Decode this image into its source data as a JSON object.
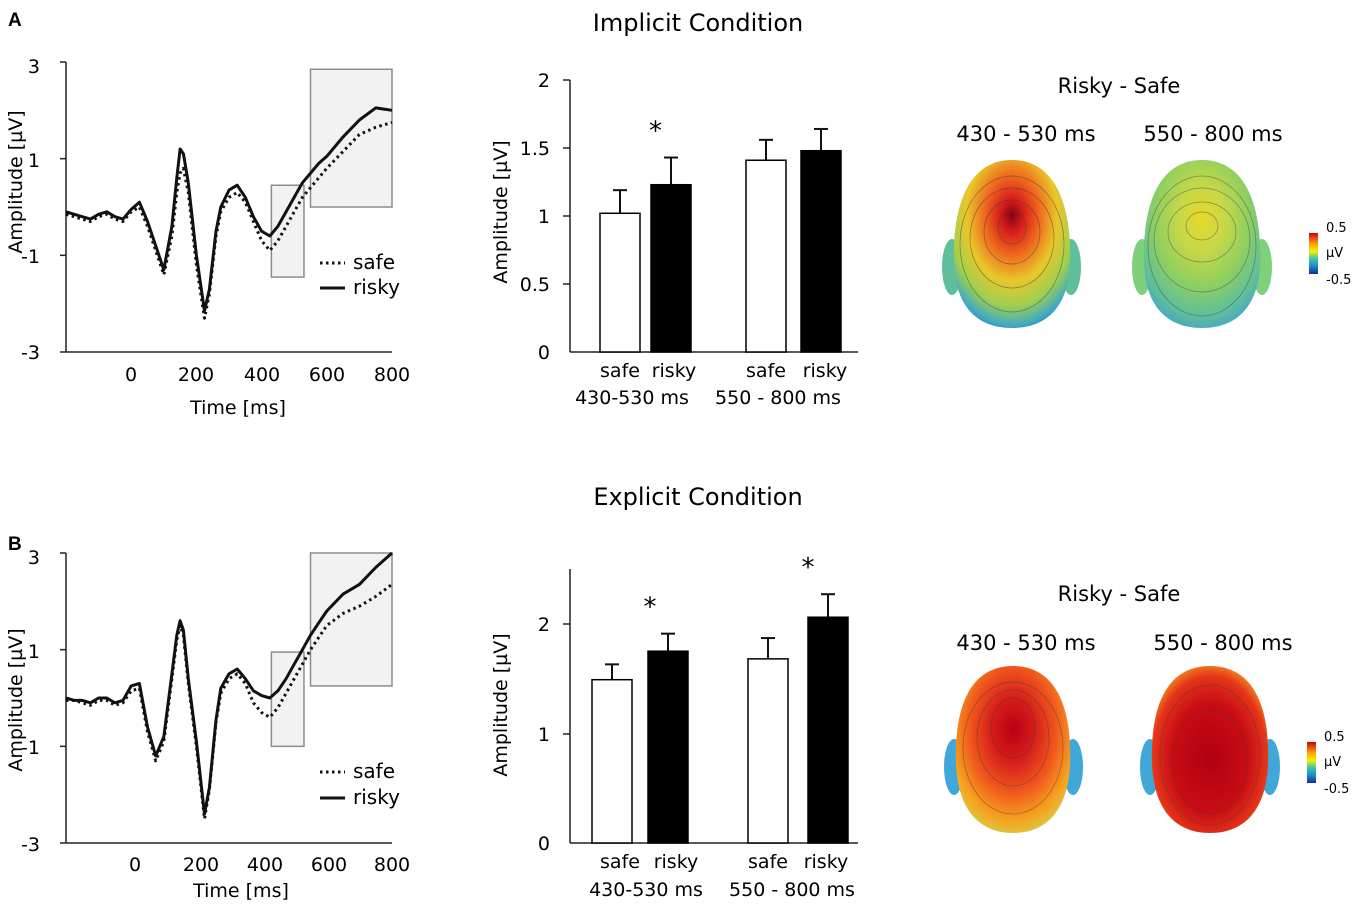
{
  "chart_data": [
    {
      "panel": "A",
      "row_title": "Implicit Condition",
      "type": "line",
      "xlabel": "Time [ms]",
      "ylabel": "Amplitude [µV]",
      "xlim": [
        -200,
        800
      ],
      "ylim": [
        -3,
        3
      ],
      "xticks": [
        "0",
        "200",
        "400",
        "600",
        "800"
      ],
      "yticks": [
        "-3",
        "-1",
        "1",
        "3"
      ],
      "series": [
        {
          "name": "safe",
          "style": "dotted",
          "x": [
            -200,
            -175,
            -150,
            -125,
            -100,
            -75,
            -50,
            -25,
            0,
            25,
            50,
            75,
            100,
            125,
            140,
            150,
            160,
            175,
            200,
            225,
            240,
            250,
            260,
            275,
            300,
            325,
            350,
            375,
            400,
            425,
            450,
            475,
            500,
            525,
            550,
            575,
            600,
            650,
            700,
            750,
            800
          ],
          "y": [
            -0.15,
            -0.2,
            -0.25,
            -0.3,
            -0.2,
            -0.15,
            -0.25,
            -0.3,
            -0.1,
            0.0,
            -0.4,
            -0.9,
            -1.4,
            -0.6,
            0.3,
            0.7,
            0.8,
            0.3,
            -1.2,
            -2.3,
            -1.8,
            -1.2,
            -0.6,
            -0.1,
            0.2,
            0.3,
            0.1,
            -0.3,
            -0.7,
            -0.9,
            -0.7,
            -0.4,
            -0.1,
            0.2,
            0.4,
            0.6,
            0.8,
            1.15,
            1.5,
            1.65,
            1.75
          ]
        },
        {
          "name": "risky",
          "style": "solid",
          "x": [
            -200,
            -175,
            -150,
            -125,
            -100,
            -75,
            -50,
            -25,
            0,
            25,
            50,
            75,
            100,
            125,
            140,
            150,
            160,
            175,
            200,
            225,
            240,
            250,
            260,
            275,
            300,
            325,
            350,
            375,
            400,
            425,
            450,
            475,
            500,
            525,
            550,
            575,
            600,
            650,
            700,
            750,
            800
          ],
          "y": [
            -0.1,
            -0.15,
            -0.2,
            -0.25,
            -0.15,
            -0.1,
            -0.2,
            -0.25,
            -0.05,
            0.1,
            -0.3,
            -0.8,
            -1.3,
            -0.4,
            0.6,
            1.2,
            1.1,
            0.5,
            -1.0,
            -2.15,
            -1.7,
            -1.1,
            -0.5,
            0.0,
            0.35,
            0.45,
            0.2,
            -0.2,
            -0.5,
            -0.6,
            -0.4,
            -0.1,
            0.2,
            0.5,
            0.7,
            0.9,
            1.05,
            1.45,
            1.8,
            2.05,
            2.0
          ]
        }
      ],
      "windows_ms": [
        [
          430,
          530
        ],
        [
          550,
          800
        ]
      ],
      "windows_uV": [
        [
          -1.45,
          0.45
        ],
        [
          0.0,
          2.85
        ]
      ],
      "legend": [
        "safe",
        "risky"
      ]
    },
    {
      "panel": "A",
      "type": "bar",
      "ylabel": "Amplitude [µV]",
      "ylim": [
        0,
        2
      ],
      "yticks": [
        "0",
        "0.5",
        "1",
        "1.5",
        "2"
      ],
      "categories": [
        "safe",
        "risky",
        "safe",
        "risky"
      ],
      "groups": [
        "430-530 ms",
        "550 - 800 ms"
      ],
      "values": [
        1.02,
        1.23,
        1.41,
        1.48
      ],
      "errors": [
        0.17,
        0.2,
        0.15,
        0.16
      ],
      "significant": [
        "*",
        ""
      ]
    },
    {
      "panel": "A",
      "type": "heatmap",
      "title": "Risky - Safe",
      "maps": [
        "430 - 530 ms",
        "550 - 800 ms"
      ],
      "colorbar": {
        "max": "0.5",
        "unit": "µV",
        "min": "-0.5"
      }
    },
    {
      "panel": "B",
      "row_title": "Explicit Condition",
      "type": "line",
      "xlabel": "Time [ms]",
      "ylabel": "Amplitude [µV]",
      "xlim": [
        -200,
        800
      ],
      "ylim": [
        -3,
        3
      ],
      "xticks": [
        "0",
        "200",
        "400",
        "600",
        "800"
      ],
      "yticks": [
        "-3",
        "-1",
        "1",
        "3"
      ],
      "series": [
        {
          "name": "safe",
          "style": "dotted",
          "x": [
            -200,
            -175,
            -150,
            -125,
            -100,
            -75,
            -50,
            -25,
            0,
            25,
            50,
            75,
            100,
            125,
            140,
            150,
            160,
            175,
            200,
            225,
            240,
            250,
            260,
            275,
            300,
            325,
            350,
            375,
            400,
            425,
            450,
            475,
            500,
            525,
            550,
            575,
            600,
            650,
            700,
            750,
            800
          ],
          "y": [
            -0.05,
            -0.05,
            -0.1,
            -0.15,
            -0.05,
            -0.05,
            -0.15,
            -0.1,
            0.15,
            0.2,
            -0.7,
            -1.3,
            -0.9,
            0.4,
            1.2,
            1.5,
            1.3,
            0.3,
            -1.0,
            -2.5,
            -1.9,
            -1.2,
            -0.5,
            0.1,
            0.4,
            0.5,
            0.3,
            -0.1,
            -0.3,
            -0.4,
            -0.2,
            0.1,
            0.4,
            0.7,
            1.0,
            1.25,
            1.5,
            1.75,
            1.9,
            2.1,
            2.35
          ]
        },
        {
          "name": "risky",
          "style": "solid",
          "x": [
            -200,
            -175,
            -150,
            -125,
            -100,
            -75,
            -50,
            -25,
            0,
            25,
            50,
            75,
            100,
            125,
            140,
            150,
            160,
            175,
            200,
            225,
            240,
            250,
            260,
            275,
            300,
            325,
            350,
            375,
            400,
            425,
            450,
            475,
            500,
            525,
            550,
            575,
            600,
            650,
            700,
            750,
            800
          ],
          "y": [
            0.0,
            -0.05,
            -0.05,
            -0.1,
            0.0,
            0.0,
            -0.1,
            -0.05,
            0.25,
            0.3,
            -0.6,
            -1.2,
            -0.8,
            0.5,
            1.3,
            1.6,
            1.4,
            0.4,
            -0.9,
            -2.4,
            -1.85,
            -1.15,
            -0.45,
            0.2,
            0.5,
            0.6,
            0.4,
            0.15,
            0.05,
            0.0,
            0.15,
            0.4,
            0.7,
            1.0,
            1.3,
            1.55,
            1.8,
            2.15,
            2.35,
            2.7,
            3.0
          ]
        }
      ],
      "windows_ms": [
        [
          430,
          530
        ],
        [
          550,
          800
        ]
      ],
      "windows_uV": [
        [
          -1.0,
          0.95
        ],
        [
          0.25,
          3.0
        ]
      ],
      "legend": [
        "safe",
        "risky"
      ]
    },
    {
      "panel": "B",
      "type": "bar",
      "ylabel": "Amplitude [µV]",
      "ylim": [
        0,
        2.5
      ],
      "yticks": [
        "0",
        "1",
        "2"
      ],
      "categories": [
        "safe",
        "risky",
        "safe",
        "risky"
      ],
      "groups": [
        "430-530 ms",
        "550 - 800 ms"
      ],
      "values": [
        1.49,
        1.75,
        1.68,
        2.06
      ],
      "errors": [
        0.14,
        0.16,
        0.19,
        0.21
      ],
      "significant": [
        "*",
        "*"
      ]
    },
    {
      "panel": "B",
      "type": "heatmap",
      "title": "Risky - Safe",
      "maps": [
        "430 - 530 ms",
        "550 - 800 ms"
      ],
      "colorbar": {
        "max": "0.5",
        "unit": "µV",
        "min": "-0.5"
      }
    }
  ]
}
